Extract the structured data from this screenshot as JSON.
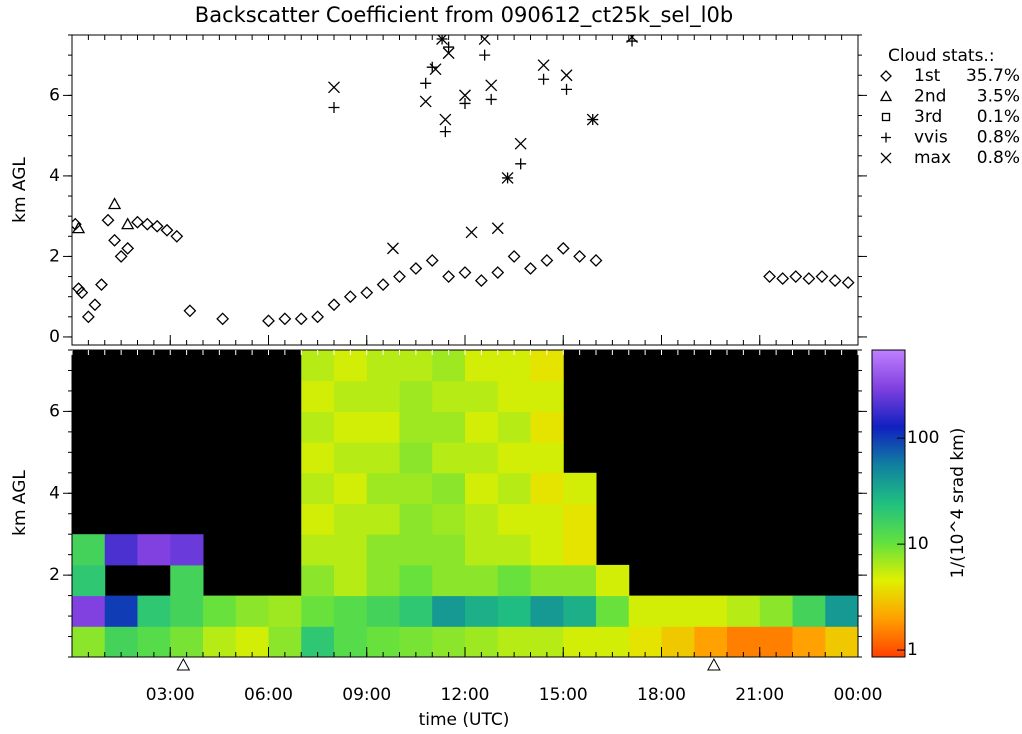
{
  "chart_data": [
    {
      "type": "scatter",
      "title": "Backscatter Coefficient from 090612_ct25k_sel_l0b",
      "ylabel": "km AGL",
      "legend_title": "Cloud stats.:",
      "xlim": [
        0,
        24
      ],
      "ylim": [
        -0.2,
        7.5
      ],
      "yticks": [
        0,
        2,
        4,
        6
      ],
      "series": [
        {
          "name": "1st",
          "marker": "diamond",
          "color": "#000000",
          "percent": 35.7,
          "percent_label": "35.7%",
          "x": [
            0.1,
            0.2,
            0.3,
            0.5,
            0.7,
            0.9,
            1.1,
            1.3,
            1.5,
            1.7,
            2.0,
            2.3,
            2.6,
            2.9,
            3.2,
            3.6,
            4.6,
            6.0,
            6.5,
            7.0,
            7.5,
            8.0,
            8.5,
            9.0,
            9.5,
            10.0,
            10.5,
            11.0,
            11.5,
            12.0,
            12.5,
            13.0,
            13.5,
            14.0,
            14.5,
            15.0,
            15.5,
            16.0,
            21.3,
            21.7,
            22.1,
            22.5,
            22.9,
            23.3,
            23.7
          ],
          "values": [
            2.8,
            1.2,
            1.1,
            0.5,
            0.8,
            1.3,
            2.9,
            2.4,
            2.0,
            2.2,
            2.85,
            2.8,
            2.75,
            2.65,
            2.5,
            0.65,
            0.45,
            0.4,
            0.45,
            0.45,
            0.5,
            0.8,
            1.0,
            1.1,
            1.3,
            1.5,
            1.7,
            1.9,
            1.5,
            1.6,
            1.4,
            1.6,
            2.0,
            1.7,
            1.9,
            2.2,
            2.0,
            1.9,
            1.5,
            1.45,
            1.5,
            1.45,
            1.5,
            1.4,
            1.35
          ]
        },
        {
          "name": "2nd",
          "marker": "triangle",
          "color": "#000000",
          "percent": 3.5,
          "percent_label": "3.5%",
          "x": [
            0.2,
            1.3,
            1.7
          ],
          "values": [
            2.7,
            3.3,
            2.8
          ]
        },
        {
          "name": "3rd",
          "marker": "square",
          "color": "#000000",
          "percent": 0.1,
          "percent_label": "0.1%",
          "x": [],
          "values": []
        },
        {
          "name": "vvis",
          "marker": "plus",
          "color": "#000000",
          "percent": 0.8,
          "percent_label": "0.8%",
          "x": [
            8.0,
            10.8,
            11.0,
            11.3,
            11.4,
            11.5,
            12.0,
            12.6,
            12.8,
            13.3,
            13.7,
            14.4,
            15.1,
            15.9,
            17.1
          ],
          "values": [
            5.7,
            6.3,
            6.7,
            7.4,
            5.1,
            7.2,
            5.8,
            7.0,
            5.9,
            3.95,
            4.3,
            6.4,
            6.15,
            5.4,
            7.35
          ]
        },
        {
          "name": "max",
          "marker": "cross",
          "color": "#000000",
          "percent": 0.8,
          "percent_label": "0.8%",
          "x": [
            8.0,
            10.8,
            11.1,
            11.3,
            11.4,
            11.5,
            12.0,
            12.6,
            12.8,
            13.3,
            13.7,
            14.4,
            15.1,
            15.9,
            17.1,
            9.8,
            12.2,
            13.0
          ],
          "values": [
            6.2,
            5.85,
            6.65,
            7.4,
            5.4,
            7.05,
            6.0,
            7.4,
            6.25,
            3.95,
            4.8,
            6.75,
            6.5,
            5.4,
            7.45,
            2.2,
            2.6,
            2.7
          ]
        }
      ]
    },
    {
      "type": "heatmap",
      "ylabel": "km AGL",
      "xlabel": "time (UTC)",
      "xlim": [
        0,
        24
      ],
      "xticks": [
        {
          "value": 3,
          "label": "03:00"
        },
        {
          "value": 6,
          "label": "06:00"
        },
        {
          "value": 9,
          "label": "09:00"
        },
        {
          "value": 12,
          "label": "12:00"
        },
        {
          "value": 15,
          "label": "15:00"
        },
        {
          "value": 18,
          "label": "18:00"
        },
        {
          "value": 21,
          "label": "21:00"
        },
        {
          "value": 24,
          "label": "00:00"
        }
      ],
      "ylim": [
        0,
        7.5
      ],
      "yticks": [
        2,
        4,
        6
      ],
      "x_edges": [
        0,
        1,
        2,
        3,
        4,
        5,
        6,
        7,
        8,
        9,
        10,
        11,
        12,
        13,
        14,
        15,
        16,
        17,
        18,
        19,
        20,
        21,
        22,
        23,
        24
      ],
      "y_edges": [
        0,
        0.75,
        1.5,
        2.25,
        3,
        3.75,
        4.5,
        5.25,
        6,
        6.75,
        7.5
      ],
      "z": [
        [
          8,
          15,
          12,
          9,
          6,
          5,
          8,
          20,
          12,
          10,
          9,
          8,
          7,
          6,
          6,
          5,
          5,
          4,
          3,
          2,
          1.5,
          1.5,
          2,
          3
        ],
        [
          300,
          100,
          20,
          15,
          10,
          8,
          7,
          10,
          12,
          15,
          20,
          40,
          30,
          25,
          40,
          30,
          10,
          5,
          5,
          5,
          6,
          8,
          15,
          40
        ],
        [
          20,
          null,
          null,
          15,
          null,
          null,
          null,
          8,
          6,
          8,
          10,
          8,
          8,
          10,
          8,
          8,
          5,
          null,
          null,
          null,
          null,
          null,
          null,
          null
        ],
        [
          15,
          200,
          300,
          250,
          null,
          null,
          null,
          6,
          6,
          8,
          8,
          8,
          6,
          6,
          5,
          4,
          null,
          null,
          null,
          null,
          null,
          null,
          null,
          null
        ],
        [
          null,
          null,
          null,
          null,
          null,
          null,
          null,
          5,
          6,
          6,
          8,
          7,
          6,
          5,
          5,
          4,
          null,
          null,
          null,
          null,
          null,
          null,
          null,
          null
        ],
        [
          null,
          null,
          null,
          null,
          null,
          null,
          null,
          6,
          5,
          7,
          7,
          8,
          5,
          6,
          4,
          5,
          null,
          null,
          null,
          null,
          null,
          null,
          null,
          null
        ],
        [
          null,
          null,
          null,
          null,
          null,
          null,
          null,
          5,
          6,
          6,
          8,
          6,
          6,
          5,
          5,
          null,
          null,
          null,
          null,
          null,
          null,
          null,
          null,
          null
        ],
        [
          null,
          null,
          null,
          null,
          null,
          null,
          null,
          6,
          5,
          5,
          7,
          7,
          5,
          6,
          4,
          null,
          null,
          null,
          null,
          null,
          null,
          null,
          null,
          null
        ],
        [
          null,
          null,
          null,
          null,
          null,
          null,
          null,
          5,
          6,
          6,
          7,
          6,
          6,
          5,
          5,
          null,
          null,
          null,
          null,
          null,
          null,
          null,
          null,
          null
        ],
        [
          null,
          null,
          null,
          null,
          null,
          null,
          null,
          6,
          5,
          6,
          6,
          7,
          5,
          5,
          4,
          null,
          null,
          null,
          null,
          null,
          null,
          null,
          null,
          null
        ]
      ],
      "colorbar_label": "1/(10^4 srad km)",
      "clim": [
        0.86,
        680
      ],
      "log_color": true,
      "cticks": [
        1,
        10,
        100
      ],
      "colormap": [
        "#ff4000",
        "#ffa000",
        "#e0f000",
        "#60e040",
        "#20c080",
        "#1080a0",
        "#1020c0",
        "#8040e0",
        "#c080ff"
      ],
      "background": "#000000",
      "bottom_markers": [
        3.4,
        19.6
      ]
    }
  ]
}
